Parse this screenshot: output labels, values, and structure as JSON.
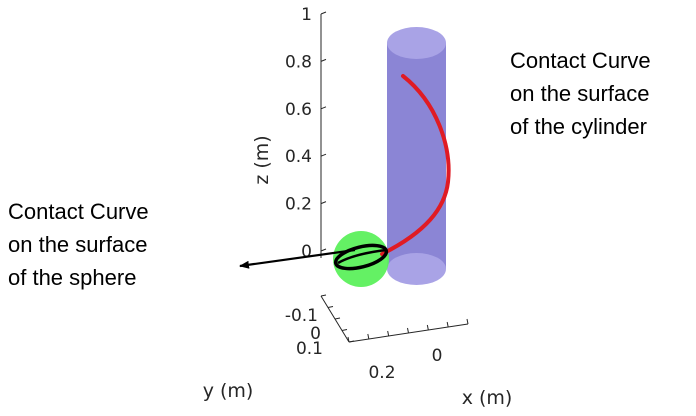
{
  "chart_data": {
    "type": "3d-surface-plot",
    "xlabel": "x (m)",
    "ylabel": "y (m)",
    "zlabel": "z (m)",
    "x_ticks": [
      "0",
      "0.2"
    ],
    "y_ticks": [
      "-0.1",
      "0",
      "0.1"
    ],
    "z_ticks": [
      "0",
      "0.2",
      "0.4",
      "0.6",
      "0.8",
      "1"
    ],
    "zlim": [
      0,
      1
    ],
    "grid": false,
    "objects": [
      {
        "name": "cylinder",
        "color": "#7b74cf"
      },
      {
        "name": "sphere",
        "color": "#5cf05c"
      }
    ],
    "curves": [
      {
        "name": "cylinder-contact",
        "color": "#e01b24"
      },
      {
        "name": "sphere-contact",
        "color": "#000000"
      }
    ],
    "annotations": [
      {
        "lines": [
          "Contact Curve",
          "on the surface",
          "of the cylinder"
        ]
      },
      {
        "lines": [
          "Contact Curve",
          "on the surface",
          "of the sphere"
        ]
      }
    ]
  }
}
